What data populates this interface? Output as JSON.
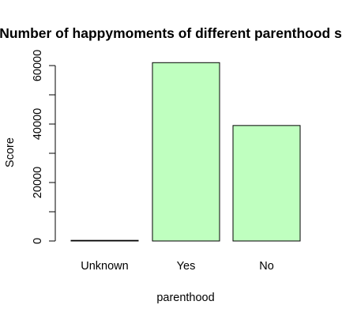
{
  "chart_data": {
    "type": "bar",
    "title": "Number of happymoments of different parenthood s",
    "xlabel": "parenthood",
    "ylabel": "Score",
    "categories": [
      "Unknown",
      "Yes",
      "No"
    ],
    "values": [
      150,
      61000,
      39500
    ],
    "ylim": [
      0,
      60000
    ],
    "y_major_ticks": [
      0,
      20000,
      40000,
      60000
    ],
    "y_minor_ticks": [
      10000,
      30000,
      50000
    ],
    "bar_fill": "#BFFFBF",
    "bar_stroke": "#000000",
    "grid": false,
    "legend": "none"
  }
}
